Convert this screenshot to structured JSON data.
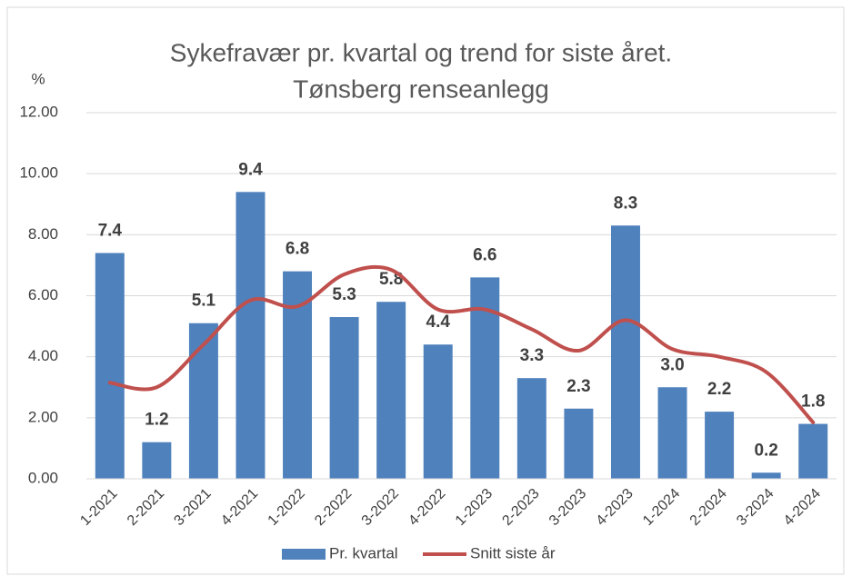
{
  "chart_data": {
    "type": "bar_line",
    "title": [
      "Sykefravær pr. kvartal og trend for siste året.",
      "Tønsberg renseanlegg"
    ],
    "y_label": "%",
    "categories": [
      "1-2021",
      "2-2021",
      "3-2021",
      "4-2021",
      "1-2022",
      "2-2022",
      "3-2022",
      "4-2022",
      "1-2023",
      "2-2023",
      "3-2023",
      "4-2023",
      "1-2024",
      "2-2024",
      "3-2024",
      "4-2024"
    ],
    "series": [
      {
        "name": "Pr. kvartal",
        "type": "bar",
        "color": "#4f81bd",
        "values": [
          7.4,
          1.2,
          5.1,
          9.4,
          6.8,
          5.3,
          5.8,
          4.4,
          6.6,
          3.3,
          2.3,
          8.3,
          3.0,
          2.2,
          0.2,
          1.8
        ],
        "value_labels": [
          "7.4",
          "1.2",
          "5.1",
          "9.4",
          "6.8",
          "5.3",
          "5.8",
          "4.4",
          "6.6",
          "3.3",
          "2.3",
          "8.3",
          "3.0",
          "2.2",
          "0.2",
          "1.8"
        ]
      },
      {
        "name": "Snitt siste år",
        "type": "line",
        "color": "#c0504d",
        "values": [
          3.15,
          3.0,
          4.4,
          5.85,
          5.65,
          6.7,
          6.85,
          5.55,
          5.55,
          4.9,
          4.2,
          5.2,
          4.25,
          4.0,
          3.5,
          1.85
        ]
      }
    ],
    "ylim": [
      0,
      12
    ],
    "yticks": [
      {
        "value": 0,
        "label": "0.00"
      },
      {
        "value": 2,
        "label": "2.00"
      },
      {
        "value": 4,
        "label": "4.00"
      },
      {
        "value": 6,
        "label": "6.00"
      },
      {
        "value": 8,
        "label": "8.00"
      },
      {
        "value": 10,
        "label": "10.00"
      },
      {
        "value": 12,
        "label": "12.00"
      }
    ],
    "grid": true,
    "legend": "bottom"
  }
}
